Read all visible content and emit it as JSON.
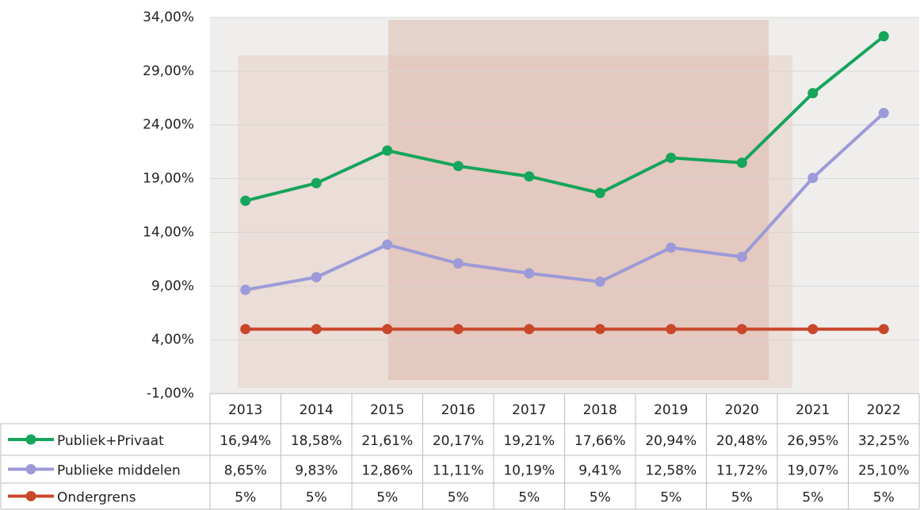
{
  "chart_data": {
    "type": "line",
    "categories": [
      "2013",
      "2014",
      "2015",
      "2016",
      "2017",
      "2018",
      "2019",
      "2020",
      "2021",
      "2022"
    ],
    "series": [
      {
        "name": "Publiek+Privaat",
        "color": "#15a55b",
        "values": [
          16.94,
          18.58,
          21.61,
          20.17,
          19.21,
          17.66,
          20.94,
          20.48,
          26.95,
          32.25
        ],
        "value_labels": [
          "16,94%",
          "18,58%",
          "21,61%",
          "20,17%",
          "19,21%",
          "17,66%",
          "20,94%",
          "20,48%",
          "26,95%",
          "32,25%"
        ]
      },
      {
        "name": "Publieke middelen",
        "color": "#9c9ad8",
        "values": [
          8.65,
          9.83,
          12.86,
          11.11,
          10.19,
          9.41,
          12.58,
          11.72,
          19.07,
          25.1
        ],
        "value_labels": [
          "8,65%",
          "9,83%",
          "12,86%",
          "11,11%",
          "10,19%",
          "9,41%",
          "12,58%",
          "11,72%",
          "19,07%",
          "25,10%"
        ]
      },
      {
        "name": "Ondergrens",
        "color": "#c9472b",
        "values": [
          5,
          5,
          5,
          5,
          5,
          5,
          5,
          5,
          5,
          5
        ],
        "value_labels": [
          "5%",
          "5%",
          "5%",
          "5%",
          "5%",
          "5%",
          "5%",
          "5%",
          "5%",
          "5%"
        ]
      }
    ],
    "ylim": [
      -1,
      34
    ],
    "yticks": [
      {
        "value": -1,
        "label": "-1,00%"
      },
      {
        "value": 4,
        "label": "4,00%"
      },
      {
        "value": 9,
        "label": "9,00%"
      },
      {
        "value": 14,
        "label": "14,00%"
      },
      {
        "value": 19,
        "label": "19,00%"
      },
      {
        "value": 24,
        "label": "24,00%"
      },
      {
        "value": 29,
        "label": "29,00%"
      },
      {
        "value": 34,
        "label": "34,00%"
      }
    ],
    "grid": true
  }
}
